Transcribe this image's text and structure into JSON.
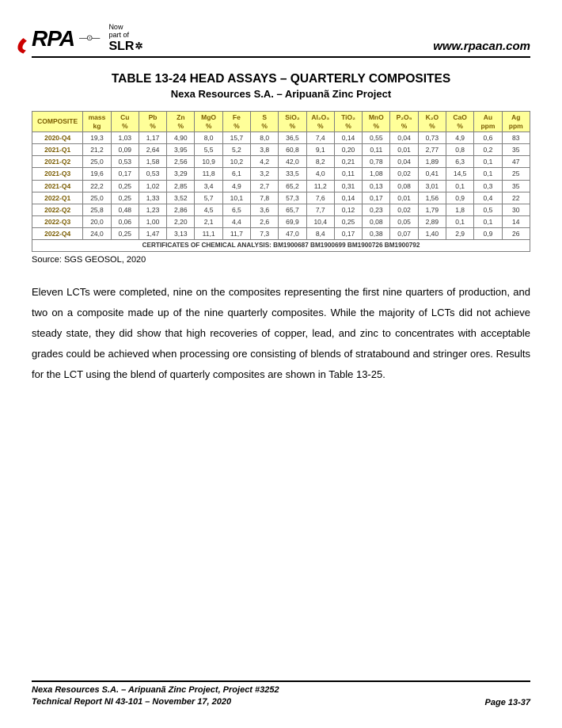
{
  "header": {
    "logo_text": "RPA",
    "slr_now": "Now",
    "slr_part": "part of",
    "slr_text": "SLR",
    "url": "www.rpacan.com"
  },
  "title": {
    "main": "TABLE 13-24   HEAD ASSAYS – QUARTERLY COMPOSITES",
    "sub": "Nexa Resources S.A. – Aripuanã Zinc Project"
  },
  "table": {
    "header_bg": "#ffff99",
    "header_color": "#7a5c00",
    "cell_bg": "#ffffff",
    "border_color": "#808080",
    "cert_bg": "#ffff00",
    "columns": [
      {
        "l1": "COMPOSITE",
        "l2": ""
      },
      {
        "l1": "mass",
        "l2": "kg"
      },
      {
        "l1": "Cu",
        "l2": "%"
      },
      {
        "l1": "Pb",
        "l2": "%"
      },
      {
        "l1": "Zn",
        "l2": "%"
      },
      {
        "l1": "MgO",
        "l2": "%"
      },
      {
        "l1": "Fe",
        "l2": "%"
      },
      {
        "l1": "S",
        "l2": "%"
      },
      {
        "l1": "SiO₂",
        "l2": "%"
      },
      {
        "l1": "Al₂O₃",
        "l2": "%"
      },
      {
        "l1": "TiO₂",
        "l2": "%"
      },
      {
        "l1": "MnO",
        "l2": "%"
      },
      {
        "l1": "P₂O₅",
        "l2": "%"
      },
      {
        "l1": "K₂O",
        "l2": "%"
      },
      {
        "l1": "CaO",
        "l2": "%"
      },
      {
        "l1": "Au",
        "l2": "ppm"
      },
      {
        "l1": "Ag",
        "l2": "ppm"
      }
    ],
    "rows": [
      [
        "2020-Q4",
        "19,3",
        "1,03",
        "1,17",
        "4,90",
        "8,0",
        "15,7",
        "8,0",
        "36,5",
        "7,4",
        "0,14",
        "0,55",
        "0,04",
        "0,73",
        "4,9",
        "0,6",
        "83"
      ],
      [
        "2021-Q1",
        "21,2",
        "0,09",
        "2,64",
        "3,95",
        "5,5",
        "5,2",
        "3,8",
        "60,8",
        "9,1",
        "0,20",
        "0,11",
        "0,01",
        "2,77",
        "0,8",
        "0,2",
        "35"
      ],
      [
        "2021-Q2",
        "25,0",
        "0,53",
        "1,58",
        "2,56",
        "10,9",
        "10,2",
        "4,2",
        "42,0",
        "8,2",
        "0,21",
        "0,78",
        "0,04",
        "1,89",
        "6,3",
        "0,1",
        "47"
      ],
      [
        "2021-Q3",
        "19,6",
        "0,17",
        "0,53",
        "3,29",
        "11,8",
        "6,1",
        "3,2",
        "33,5",
        "4,0",
        "0,11",
        "1,08",
        "0,02",
        "0,41",
        "14,5",
        "0,1",
        "25"
      ],
      [
        "2021-Q4",
        "22,2",
        "0,25",
        "1,02",
        "2,85",
        "3,4",
        "4,9",
        "2,7",
        "65,2",
        "11,2",
        "0,31",
        "0,13",
        "0,08",
        "3,01",
        "0,1",
        "0,3",
        "35"
      ],
      [
        "2022-Q1",
        "25,0",
        "0,25",
        "1,33",
        "3,52",
        "5,7",
        "10,1",
        "7,8",
        "57,3",
        "7,6",
        "0,14",
        "0,17",
        "0,01",
        "1,56",
        "0,9",
        "0,4",
        "22"
      ],
      [
        "2022-Q2",
        "25,8",
        "0,48",
        "1,23",
        "2,86",
        "4,5",
        "6,5",
        "3,6",
        "65,7",
        "7,7",
        "0,12",
        "0,23",
        "0,02",
        "1,79",
        "1,8",
        "0,5",
        "30"
      ],
      [
        "2022-Q3",
        "20,0",
        "0,06",
        "1,00",
        "2,20",
        "2,1",
        "4,4",
        "2,6",
        "69,9",
        "10,4",
        "0,25",
        "0,08",
        "0,05",
        "2,89",
        "0,1",
        "0,1",
        "14"
      ],
      [
        "2022-Q4",
        "24,0",
        "0,25",
        "1,47",
        "3,13",
        "11,1",
        "11,7",
        "7,3",
        "47,0",
        "8,4",
        "0,17",
        "0,38",
        "0,07",
        "1,40",
        "2,9",
        "0,9",
        "26"
      ]
    ],
    "certificates": "CERTIFICATES OF CHEMICAL ANALYSIS: BM1900687  BM1900699  BM1900726  BM1900792"
  },
  "source": "Source: SGS GEOSOL, 2020",
  "paragraph": "Eleven LCTs were completed, nine on the composites representing the first nine quarters of production, and two on a composite made up of the nine quarterly composites.  While the majority of LCTs did not achieve steady state, they did show that high recoveries of copper, lead, and zinc to concentrates with acceptable grades could be achieved when processing ore consisting of blends of stratabound and stringer ores.  Results for the LCT using the blend of quarterly composites are shown in Table 13-25.",
  "footer": {
    "line1": "Nexa Resources S.A. – Aripuanã Zinc Project, Project #3252",
    "line2": "Technical Report NI 43-101 – November 17, 2020",
    "page": "Page 13-37"
  }
}
